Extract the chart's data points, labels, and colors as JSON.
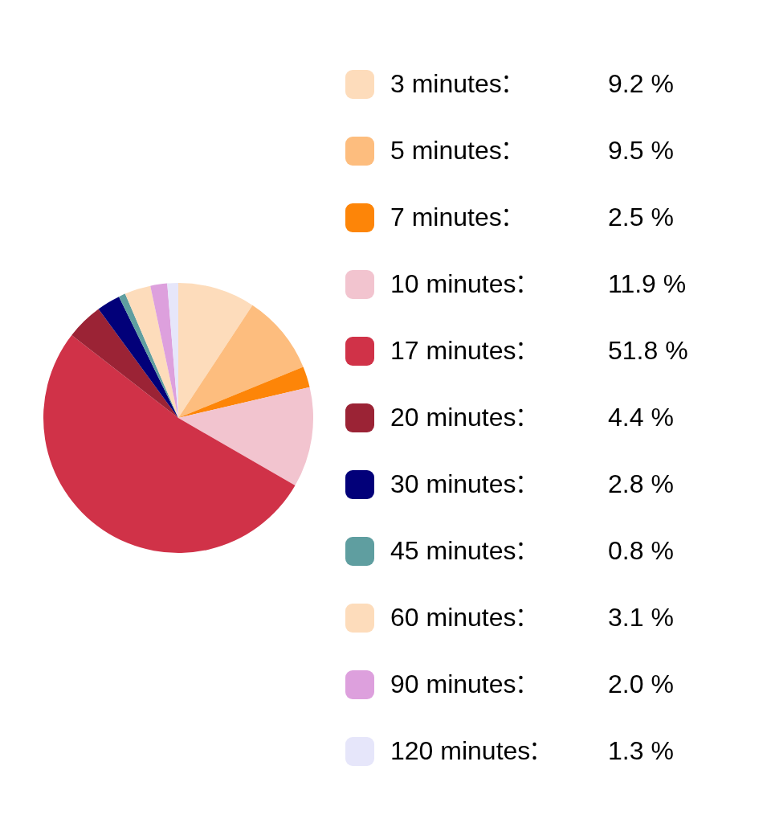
{
  "chart_data": {
    "type": "pie",
    "legend": "right",
    "categories": [
      "3 minutes",
      "5 minutes",
      "7 minutes",
      "10 minutes",
      "17 minutes",
      "20 minutes",
      "30 minutes",
      "45 minutes",
      "60 minutes",
      "90 minutes",
      "120 minutes"
    ],
    "values": [
      9.2,
      9.5,
      2.5,
      11.9,
      51.8,
      4.4,
      2.8,
      0.8,
      3.1,
      2.0,
      1.3
    ],
    "value_labels": [
      "9.2 %",
      "9.5 %",
      "2.5 %",
      "11.9 %",
      "51.8 %",
      "4.4 %",
      "2.8 %",
      "0.8 %",
      "3.1 %",
      "2.0 %",
      "1.3 %"
    ],
    "colors": [
      "#fddcbb",
      "#fdbd7e",
      "#fd8508",
      "#f2c4cf",
      "#d03248",
      "#9b2335",
      "#020079",
      "#5f9ea0",
      "#fddcbb",
      "#dda0dd",
      "#e6e6fa"
    ]
  }
}
